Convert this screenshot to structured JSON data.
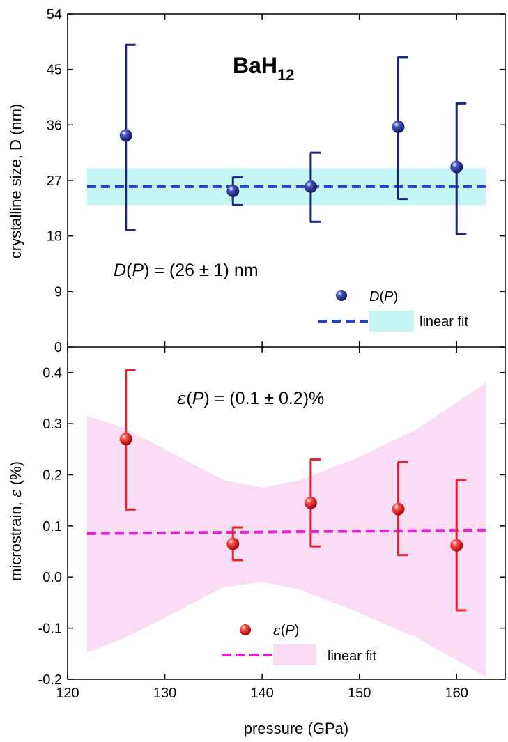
{
  "chart_data": [
    {
      "type": "scatter",
      "panel": "top",
      "title": "BaH",
      "title_subscript": "12",
      "ylabel": "crystalline size, D (nm)",
      "xlim": [
        120,
        165
      ],
      "ylim": [
        0,
        54
      ],
      "y_ticks": [
        "0",
        "9",
        "18",
        "27",
        "36",
        "45",
        "54"
      ],
      "grid": false,
      "annotation": {
        "func": "D",
        "arg": "P",
        "rest": " = (26 ± 1) nm"
      },
      "series": [
        {
          "name": "D(P)",
          "color": "#1a237e",
          "points": [
            {
              "x": 126,
              "y": 34.3,
              "ylo": 19.0,
              "yhi": 49.0
            },
            {
              "x": 137,
              "y": 25.3,
              "ylo": 23.0,
              "yhi": 27.5
            },
            {
              "x": 145,
              "y": 26.0,
              "ylo": 20.3,
              "yhi": 31.5
            },
            {
              "x": 154,
              "y": 35.7,
              "ylo": 24.0,
              "yhi": 47.0
            },
            {
              "x": 160,
              "y": 29.2,
              "ylo": 18.3,
              "yhi": 39.5
            }
          ]
        }
      ],
      "fit": {
        "name": "linear fit",
        "x": [
          122,
          163
        ],
        "y": [
          26,
          26
        ],
        "band_low": 23,
        "band_high": 29,
        "line_color": "#1f3fd6",
        "band_color": "#c5f5f5"
      },
      "legend": {
        "position": "bottom-right",
        "marker_label_func": "D",
        "marker_label_arg": "P",
        "fit_label": "linear fit"
      }
    },
    {
      "type": "scatter",
      "panel": "bottom",
      "xlabel": "pressure (GPa)",
      "ylabel_prefix": "microstrain, ",
      "ylabel_symbol": "ε",
      "ylabel_suffix": " (%)",
      "xlim": [
        120,
        165
      ],
      "ylim": [
        -0.2,
        0.45
      ],
      "x_ticks": [
        "120",
        "130",
        "140",
        "150",
        "160"
      ],
      "y_ticks": [
        "-0.2",
        "-0.1",
        "0.0",
        "0.1",
        "0.2",
        "0.3",
        "0.4"
      ],
      "grid": false,
      "annotation": {
        "func": "ε",
        "arg": "P",
        "rest": " = (0.1 ± 0.2)%"
      },
      "series": [
        {
          "name": "ε(P)",
          "color": "#e8202a",
          "points": [
            {
              "x": 126,
              "y": 0.27,
              "ylo": 0.132,
              "yhi": 0.405
            },
            {
              "x": 137,
              "y": 0.065,
              "ylo": 0.033,
              "yhi": 0.097
            },
            {
              "x": 145,
              "y": 0.145,
              "ylo": 0.06,
              "yhi": 0.23
            },
            {
              "x": 154,
              "y": 0.133,
              "ylo": 0.043,
              "yhi": 0.225
            },
            {
              "x": 160,
              "y": 0.062,
              "ylo": -0.065,
              "yhi": 0.19
            }
          ]
        }
      ],
      "fit": {
        "name": "linear fit",
        "x": [
          122,
          163
        ],
        "y": [
          0.085,
          0.092
        ],
        "band_upper": [
          [
            122,
            0.315
          ],
          [
            126,
            0.29
          ],
          [
            131,
            0.24
          ],
          [
            136,
            0.19
          ],
          [
            140,
            0.175
          ],
          [
            144,
            0.19
          ],
          [
            150,
            0.235
          ],
          [
            156,
            0.29
          ],
          [
            163,
            0.38
          ]
        ],
        "band_lower": [
          [
            122,
            -0.148
          ],
          [
            126,
            -0.118
          ],
          [
            131,
            -0.07
          ],
          [
            136,
            -0.02
          ],
          [
            140,
            -0.01
          ],
          [
            144,
            -0.025
          ],
          [
            150,
            -0.07
          ],
          [
            156,
            -0.12
          ],
          [
            163,
            -0.195
          ]
        ],
        "line_color": "#e41fd6",
        "band_color": "#fadcf5"
      },
      "legend": {
        "position": "bottom-center",
        "marker_label_func": "ε",
        "marker_label_arg": "P",
        "fit_label": "linear fit"
      }
    }
  ]
}
